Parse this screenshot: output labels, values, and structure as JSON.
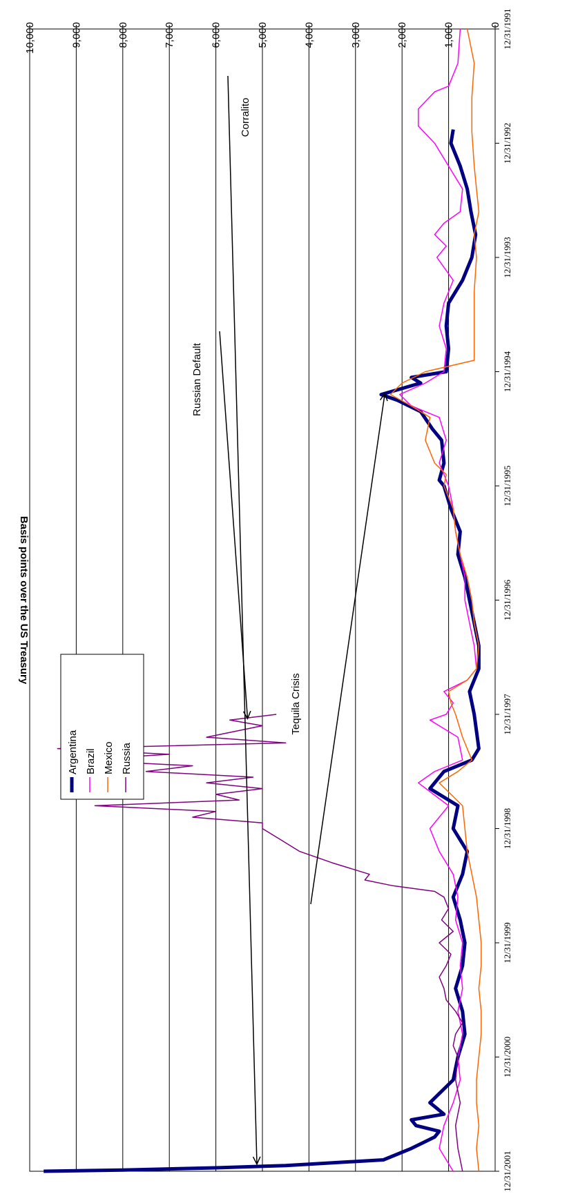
{
  "chart_data": {
    "type": "line",
    "title": "",
    "ylabel": "Basis points over the US Treasury",
    "xlabel": "",
    "ylim": [
      0,
      10000
    ],
    "y_ticks": [
      "0",
      "1,000",
      "2,000",
      "3,000",
      "4,000",
      "5,000",
      "6,000",
      "7,000",
      "8,000",
      "9,000",
      "10,000"
    ],
    "x_ticks": [
      "12/31/1991",
      "12/31/1992",
      "12/31/1993",
      "12/31/1994",
      "12/31/1995",
      "12/31/1996",
      "12/31/1997",
      "12/31/1998",
      "12/31/1999",
      "12/31/2000",
      "12/31/2001"
    ],
    "xlim": [
      1992.0,
      2002.0
    ],
    "grid": true,
    "legend_position": "bottom-left (rotated chart)",
    "series": [
      {
        "name": "Argentina",
        "color": "#000080",
        "width": 5,
        "points": [
          [
            1992.88,
            900
          ],
          [
            1993.0,
            950
          ],
          [
            1993.2,
            750
          ],
          [
            1993.4,
            600
          ],
          [
            1993.6,
            520
          ],
          [
            1993.8,
            420
          ],
          [
            1994.0,
            500
          ],
          [
            1994.2,
            700
          ],
          [
            1994.4,
            1000
          ],
          [
            1994.6,
            1050
          ],
          [
            1994.8,
            1000
          ],
          [
            1995.0,
            1050
          ],
          [
            1995.05,
            1800
          ],
          [
            1995.1,
            1600
          ],
          [
            1995.2,
            2450
          ],
          [
            1995.25,
            2100
          ],
          [
            1995.35,
            1600
          ],
          [
            1995.5,
            1350
          ],
          [
            1995.6,
            1150
          ],
          [
            1995.8,
            1100
          ],
          [
            1995.95,
            1200
          ],
          [
            1996.0,
            1100
          ],
          [
            1996.2,
            950
          ],
          [
            1996.4,
            750
          ],
          [
            1996.6,
            800
          ],
          [
            1996.8,
            650
          ],
          [
            1997.0,
            550
          ],
          [
            1997.2,
            450
          ],
          [
            1997.4,
            350
          ],
          [
            1997.6,
            350
          ],
          [
            1997.8,
            550
          ],
          [
            1998.0,
            450
          ],
          [
            1998.3,
            350
          ],
          [
            1998.4,
            500
          ],
          [
            1998.5,
            1100
          ],
          [
            1998.65,
            1400
          ],
          [
            1998.8,
            800
          ],
          [
            1999.0,
            900
          ],
          [
            1999.2,
            600
          ],
          [
            1999.4,
            700
          ],
          [
            1999.6,
            900
          ],
          [
            1999.8,
            750
          ],
          [
            2000.0,
            650
          ],
          [
            2000.2,
            700
          ],
          [
            2000.4,
            850
          ],
          [
            2000.6,
            700
          ],
          [
            2000.8,
            650
          ],
          [
            2001.0,
            800
          ],
          [
            2001.2,
            900
          ],
          [
            2001.4,
            1400
          ],
          [
            2001.5,
            1100
          ],
          [
            2001.55,
            1800
          ],
          [
            2001.6,
            1700
          ],
          [
            2001.65,
            1200
          ],
          [
            2001.7,
            1300
          ],
          [
            2001.8,
            1800
          ],
          [
            2001.9,
            2400
          ],
          [
            2001.95,
            4500
          ],
          [
            2001.97,
            6000
          ],
          [
            2001.99,
            8000
          ],
          [
            2002.0,
            9700
          ]
        ]
      },
      {
        "name": "Brazil",
        "color": "#ff00ff",
        "width": 1.5,
        "points": [
          [
            1992.0,
            750
          ],
          [
            1992.3,
            800
          ],
          [
            1992.5,
            1000
          ],
          [
            1992.55,
            1300
          ],
          [
            1992.7,
            1650
          ],
          [
            1992.85,
            1650
          ],
          [
            1993.0,
            1300
          ],
          [
            1993.2,
            1000
          ],
          [
            1993.4,
            700
          ],
          [
            1993.6,
            750
          ],
          [
            1993.7,
            1100
          ],
          [
            1993.8,
            1300
          ],
          [
            1993.9,
            1050
          ],
          [
            1994.0,
            1250
          ],
          [
            1994.2,
            900
          ],
          [
            1994.4,
            1100
          ],
          [
            1994.6,
            1200
          ],
          [
            1994.8,
            1050
          ],
          [
            1995.0,
            1100
          ],
          [
            1995.1,
            1500
          ],
          [
            1995.2,
            2050
          ],
          [
            1995.3,
            1800
          ],
          [
            1995.4,
            1200
          ],
          [
            1995.6,
            1050
          ],
          [
            1995.8,
            1200
          ],
          [
            1996.0,
            1000
          ],
          [
            1996.2,
            900
          ],
          [
            1996.4,
            850
          ],
          [
            1996.6,
            750
          ],
          [
            1996.8,
            650
          ],
          [
            1997.0,
            650
          ],
          [
            1997.2,
            550
          ],
          [
            1997.4,
            450
          ],
          [
            1997.6,
            400
          ],
          [
            1997.7,
            600
          ],
          [
            1997.8,
            1100
          ],
          [
            1997.9,
            900
          ],
          [
            1998.0,
            1050
          ],
          [
            1998.05,
            1400
          ],
          [
            1998.2,
            800
          ],
          [
            1998.4,
            700
          ],
          [
            1998.5,
            1300
          ],
          [
            1998.6,
            1650
          ],
          [
            1998.8,
            1000
          ],
          [
            1999.0,
            1400
          ],
          [
            1999.2,
            1200
          ],
          [
            1999.4,
            900
          ],
          [
            1999.6,
            800
          ],
          [
            1999.8,
            850
          ],
          [
            2000.0,
            700
          ],
          [
            2000.2,
            750
          ],
          [
            2000.4,
            700
          ],
          [
            2000.6,
            800
          ],
          [
            2000.8,
            700
          ],
          [
            2001.0,
            800
          ],
          [
            2001.2,
            750
          ],
          [
            2001.4,
            900
          ],
          [
            2001.6,
            1100
          ],
          [
            2001.8,
            1200
          ],
          [
            2002.0,
            900
          ]
        ]
      },
      {
        "name": "Mexico",
        "color": "#ff6600",
        "width": 1.5,
        "points": [
          [
            1992.0,
            600
          ],
          [
            1992.3,
            450
          ],
          [
            1992.6,
            500
          ],
          [
            1992.9,
            500
          ],
          [
            1993.2,
            450
          ],
          [
            1993.4,
            400
          ],
          [
            1993.6,
            350
          ],
          [
            1993.8,
            450
          ],
          [
            1994.0,
            400
          ],
          [
            1994.3,
            450
          ],
          [
            1994.6,
            450
          ],
          [
            1994.9,
            450
          ],
          [
            1995.0,
            1500
          ],
          [
            1995.1,
            2000
          ],
          [
            1995.2,
            2250
          ],
          [
            1995.3,
            1800
          ],
          [
            1995.4,
            1400
          ],
          [
            1995.6,
            1500
          ],
          [
            1995.8,
            1300
          ],
          [
            1995.9,
            1050
          ],
          [
            1996.0,
            1100
          ],
          [
            1996.2,
            900
          ],
          [
            1996.4,
            850
          ],
          [
            1996.6,
            750
          ],
          [
            1996.8,
            600
          ],
          [
            1997.0,
            500
          ],
          [
            1997.2,
            450
          ],
          [
            1997.4,
            350
          ],
          [
            1997.6,
            400
          ],
          [
            1997.7,
            600
          ],
          [
            1997.8,
            1000
          ],
          [
            1997.9,
            950
          ],
          [
            1998.0,
            850
          ],
          [
            1998.2,
            700
          ],
          [
            1998.4,
            500
          ],
          [
            1998.5,
            800
          ],
          [
            1998.6,
            1200
          ],
          [
            1998.8,
            700
          ],
          [
            1999.0,
            650
          ],
          [
            1999.2,
            600
          ],
          [
            1999.4,
            500
          ],
          [
            1999.6,
            400
          ],
          [
            1999.8,
            350
          ],
          [
            2000.0,
            300
          ],
          [
            2000.2,
            300
          ],
          [
            2000.4,
            350
          ],
          [
            2000.6,
            300
          ],
          [
            2000.8,
            300
          ],
          [
            2001.0,
            350
          ],
          [
            2001.2,
            400
          ],
          [
            2001.4,
            400
          ],
          [
            2001.6,
            350
          ],
          [
            2001.8,
            400
          ],
          [
            2002.0,
            350
          ]
        ]
      },
      {
        "name": "Russia",
        "color": "#800080",
        "width": 1.5,
        "points": [
          [
            1998.0,
            4700
          ],
          [
            1998.05,
            5700
          ],
          [
            1998.1,
            5000
          ],
          [
            1998.2,
            6200
          ],
          [
            1998.25,
            4500
          ],
          [
            1998.3,
            9400
          ],
          [
            1998.35,
            7000
          ],
          [
            1998.4,
            9000
          ],
          [
            1998.45,
            6500
          ],
          [
            1998.5,
            7500
          ],
          [
            1998.55,
            5200
          ],
          [
            1998.6,
            6200
          ],
          [
            1998.65,
            5000
          ],
          [
            1998.7,
            6000
          ],
          [
            1998.75,
            5500
          ],
          [
            1998.8,
            8600
          ],
          [
            1998.85,
            6000
          ],
          [
            1998.9,
            6500
          ],
          [
            1998.95,
            5000
          ],
          [
            1999.0,
            5000
          ],
          [
            1999.1,
            4600
          ],
          [
            1999.2,
            4200
          ],
          [
            1999.3,
            3500
          ],
          [
            1999.4,
            2700
          ],
          [
            1999.45,
            2800
          ],
          [
            1999.5,
            2200
          ],
          [
            1999.55,
            1300
          ],
          [
            1999.6,
            1100
          ],
          [
            1999.7,
            1000
          ],
          [
            1999.8,
            1150
          ],
          [
            1999.9,
            900
          ],
          [
            2000.0,
            1200
          ],
          [
            2000.1,
            950
          ],
          [
            2000.2,
            1050
          ],
          [
            2000.3,
            1200
          ],
          [
            2000.4,
            1100
          ],
          [
            2000.5,
            1050
          ],
          [
            2000.6,
            850
          ],
          [
            2000.7,
            700
          ],
          [
            2000.8,
            850
          ],
          [
            2000.9,
            900
          ],
          [
            2001.0,
            800
          ],
          [
            2001.2,
            850
          ],
          [
            2001.4,
            750
          ],
          [
            2001.6,
            850
          ],
          [
            2001.8,
            800
          ],
          [
            2002.0,
            700
          ]
        ]
      }
    ],
    "annotations": [
      {
        "text": "Tequila Crisis",
        "target": [
          1995.2,
          2250
        ]
      },
      {
        "text": "Russian Default",
        "target": [
          1998.05,
          5200
        ]
      },
      {
        "text": "Corralito",
        "target": [
          2001.95,
          5000
        ]
      }
    ]
  }
}
